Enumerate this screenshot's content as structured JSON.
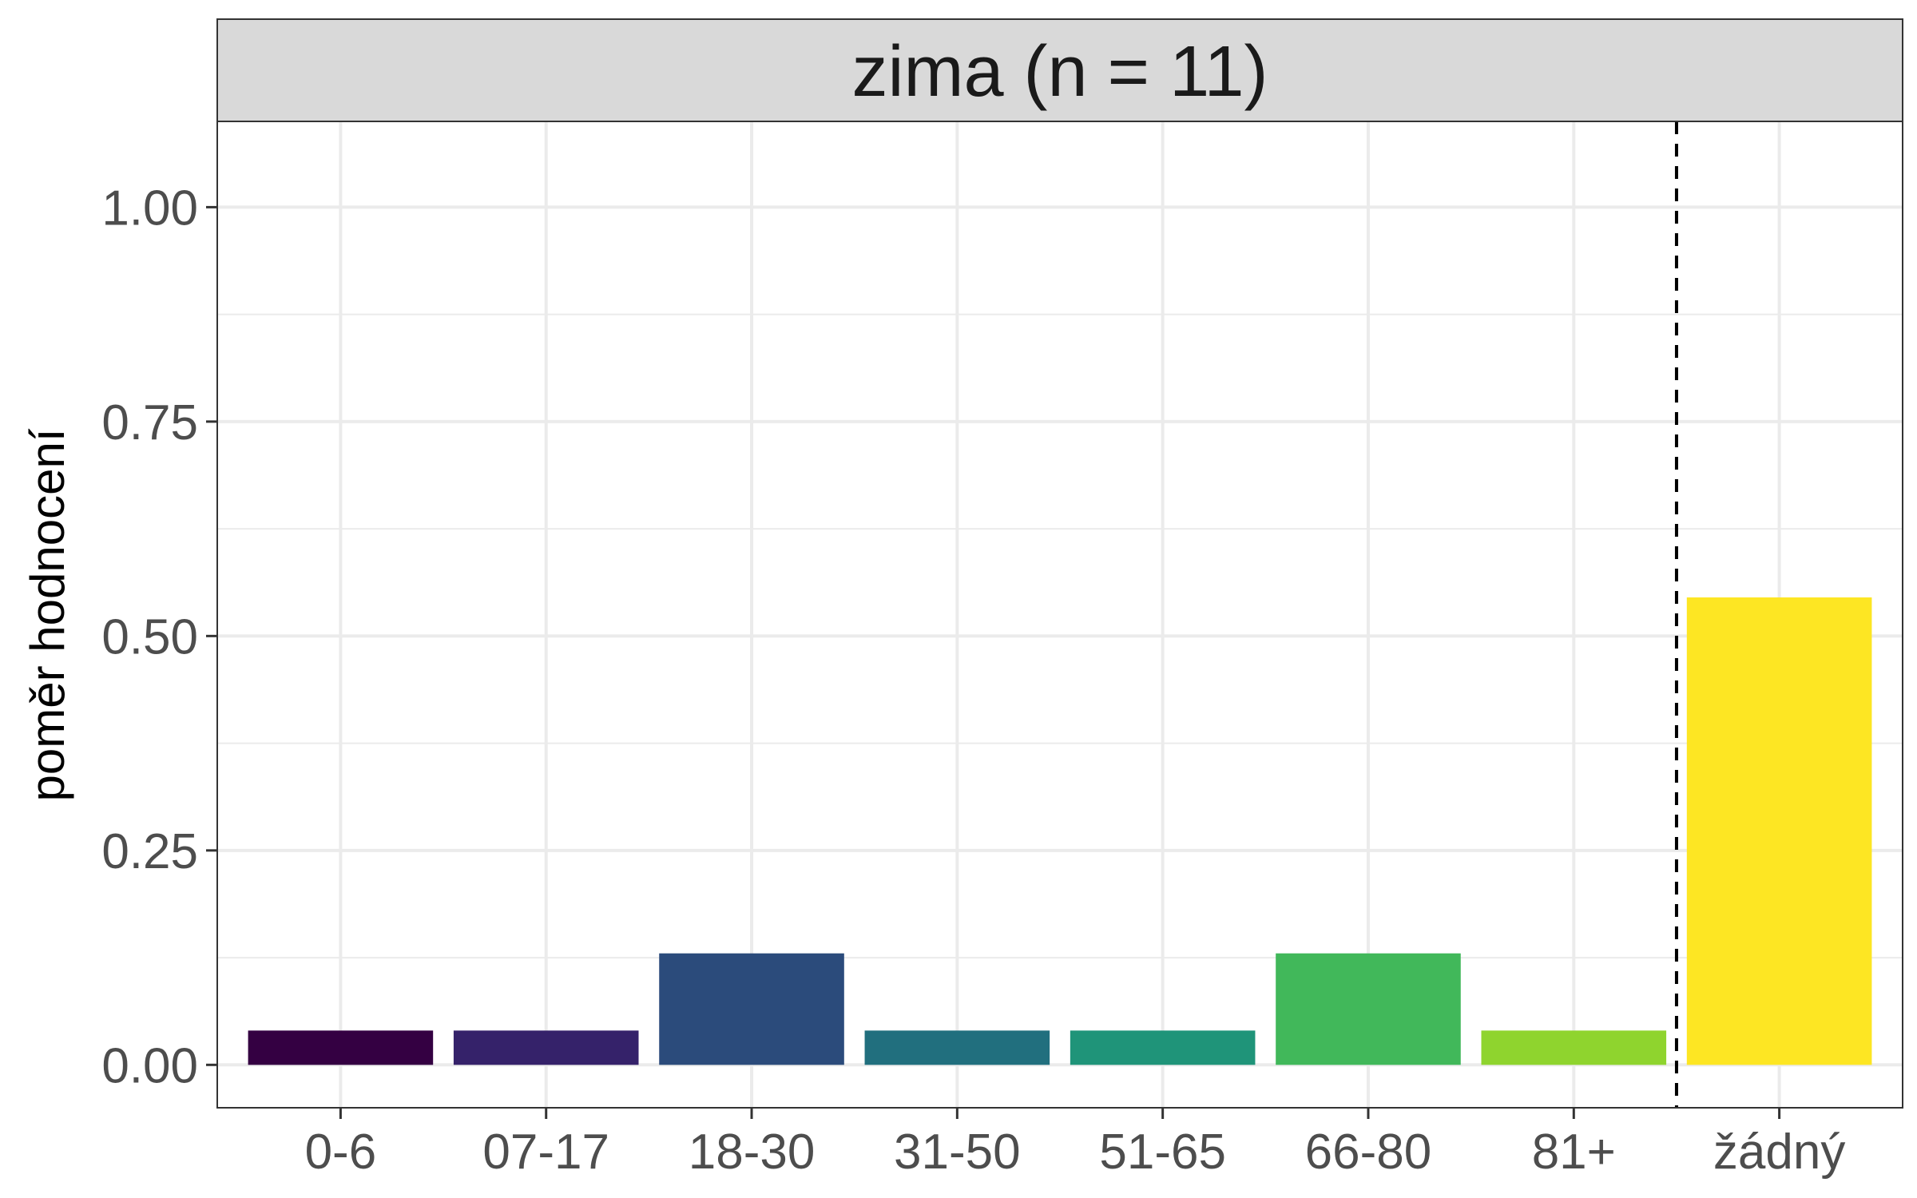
{
  "chart_data": {
    "type": "bar",
    "title": "",
    "facet_label": "zima (n = 11)",
    "xlabel": "",
    "ylabel": "poměr hodnocení",
    "categories": [
      "0-6",
      "07-17",
      "18-30",
      "31-50",
      "51-65",
      "66-80",
      "81+",
      "žádný"
    ],
    "values": [
      0.04,
      0.04,
      0.13,
      0.04,
      0.04,
      0.13,
      0.04,
      0.545
    ],
    "colors": [
      "#340042",
      "#35226a",
      "#2b4b7b",
      "#216f7e",
      "#1f9479",
      "#41b85a",
      "#8fd42e",
      "#fde623"
    ],
    "ylim": [
      -0.05,
      1.1
    ],
    "yticks": [
      0.0,
      0.25,
      0.5,
      0.75,
      1.0
    ],
    "ytick_labels": [
      "0.00",
      "0.25",
      "0.50",
      "0.75",
      "1.00"
    ],
    "reference_line": {
      "type": "vertical-dashed",
      "between": [
        "81+",
        "žádný"
      ]
    },
    "grid": true
  }
}
